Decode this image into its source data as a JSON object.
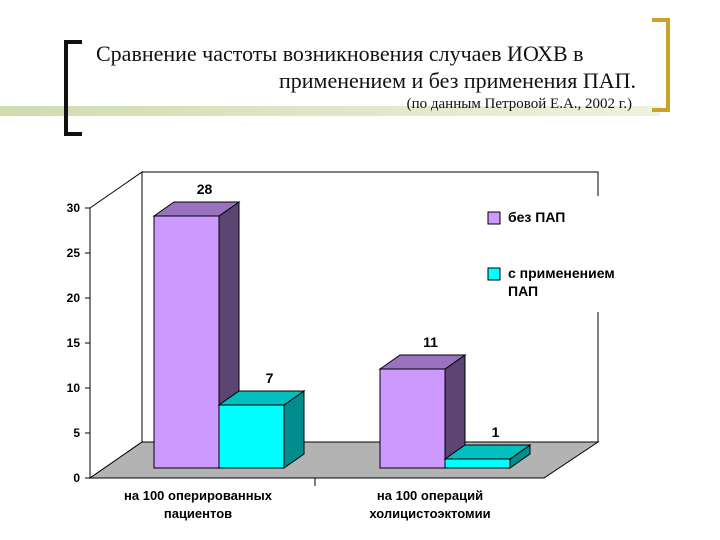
{
  "slide": {
    "title_line1": "Сравнение частоты возникновения случаев ИОХВ в",
    "title_line2": "применением и без применения ПАП.",
    "subtitle": "(по данным Петровой Е.А., 2002 г.)"
  },
  "chart_data": {
    "type": "bar",
    "categories": [
      [
        "на 100 оперированных",
        "пациентов"
      ],
      [
        "на 100 операций",
        "холицистоэктомии"
      ]
    ],
    "series": [
      {
        "name": "без ПАП",
        "values": [
          28,
          11
        ],
        "color": "#cc99ff"
      },
      {
        "name": "с применением ПАП",
        "values": [
          7,
          1
        ],
        "color": "#00ffff"
      }
    ],
    "legend_labels": [
      [
        "без ПАП"
      ],
      [
        "с применением",
        "ПАП"
      ]
    ],
    "ylim": [
      0,
      30
    ],
    "yticks": [
      0,
      5,
      10,
      15,
      20,
      25,
      30
    ],
    "grid": false,
    "legend_position": "right",
    "style": "3d-clustered-column"
  }
}
